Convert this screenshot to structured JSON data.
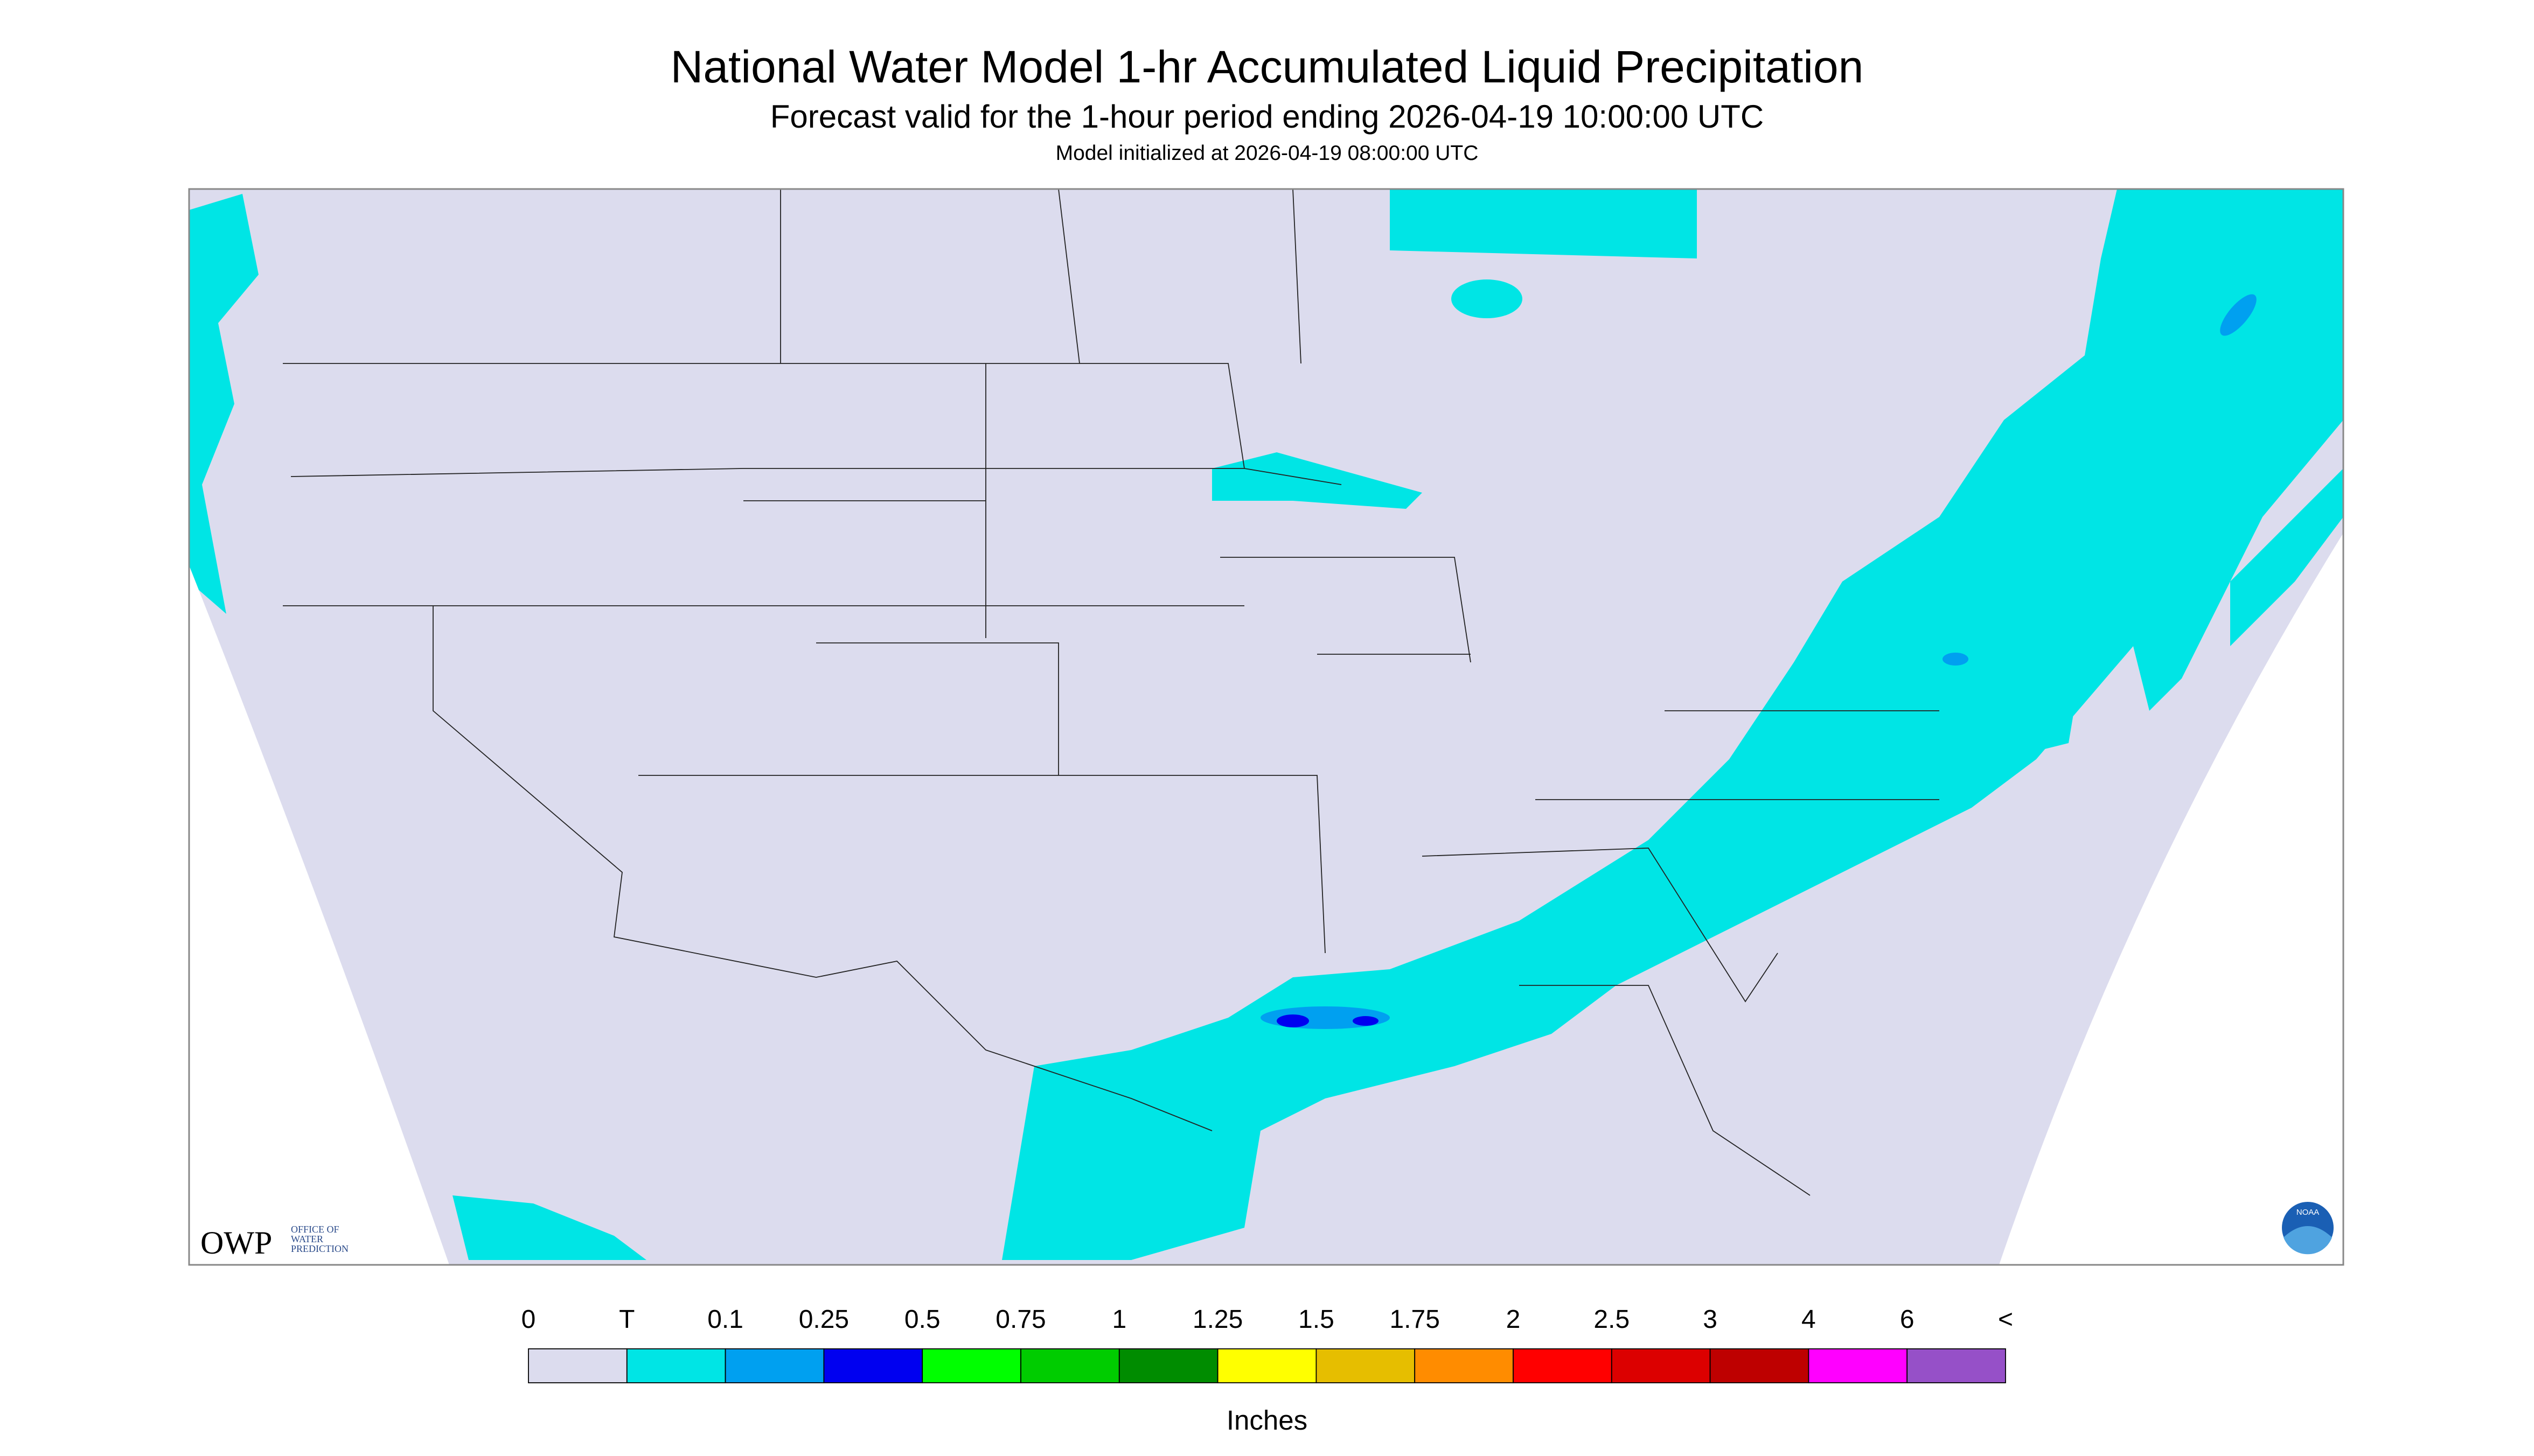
{
  "header": {
    "title": "National Water Model 1-hr Accumulated Liquid Precipitation",
    "subtitle": "Forecast valid for the 1-hour period ending 2026-04-19 10:00:00 UTC",
    "init": "Model initialized at 2026-04-19 08:00:00 UTC"
  },
  "logo": {
    "name": "OWP",
    "lines": [
      "OFFICE OF",
      "WATER",
      "PREDICTION"
    ],
    "badge": "NOAA"
  },
  "legend": {
    "labels": [
      "0",
      "T",
      "0.1",
      "0.25",
      "0.5",
      "0.75",
      "1",
      "1.25",
      "1.5",
      "1.75",
      "2",
      "2.5",
      "3",
      "4",
      "6",
      "<"
    ],
    "colors": [
      "#dcdcee",
      "#00e5e5",
      "#00a0f0",
      "#0000f0",
      "#00ff00",
      "#00cc00",
      "#008c00",
      "#ffff00",
      "#e6be00",
      "#ff8c00",
      "#ff0000",
      "#dc0000",
      "#be0000",
      "#ff00ff",
      "#9650c8"
    ],
    "units": "Inches"
  }
}
